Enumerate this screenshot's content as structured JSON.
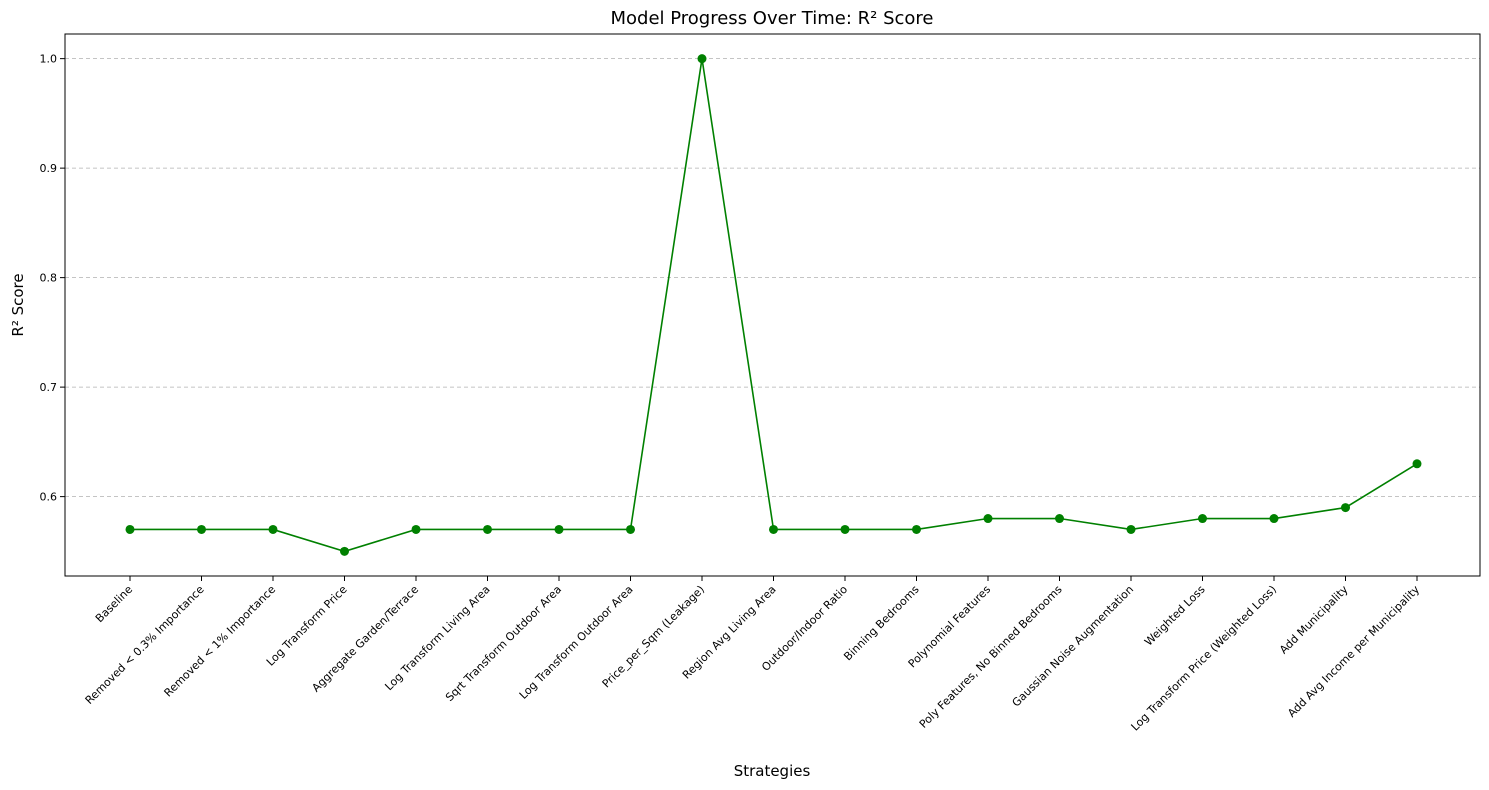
{
  "chart_data": {
    "type": "line",
    "title": "Model Progress Over Time: R² Score",
    "xlabel": "Strategies",
    "ylabel": "R² Score",
    "categories": [
      "Baseline",
      "Removed < 0.3% Importance",
      "Removed < 1% Importance",
      "Log Transform Price",
      "Aggregate Garden/Terrace",
      "Log Transform Living Area",
      "Sqrt Transform Outdoor Area",
      "Log Transform Outdoor Area",
      "Price_per_Sqm (Leakage)",
      "Region Avg Living Area",
      "Outdoor/Indoor Ratio",
      "Binning Bedrooms",
      "Polynomial Features",
      "Poly Features, No Binned Bedrooms",
      "Gaussian Noise Augmentation",
      "Weighted Loss",
      "Log Transform Price (Weighted Loss)",
      "Add Municipality",
      "Add Avg Income per Municipality"
    ],
    "series": [
      {
        "values": [
          0.57,
          0.57,
          0.57,
          0.55,
          0.57,
          0.57,
          0.57,
          0.57,
          1.0,
          0.57,
          0.57,
          0.57,
          0.58,
          0.58,
          0.57,
          0.58,
          0.58,
          0.59,
          0.63
        ],
        "color": "#008000",
        "marker": "circle"
      }
    ],
    "yticks": [
      "0.6",
      "0.7",
      "0.8",
      "0.9",
      "1.0"
    ],
    "ylim": [
      0.5275,
      1.0225
    ],
    "grid": "y-dashed",
    "legend": "none"
  }
}
